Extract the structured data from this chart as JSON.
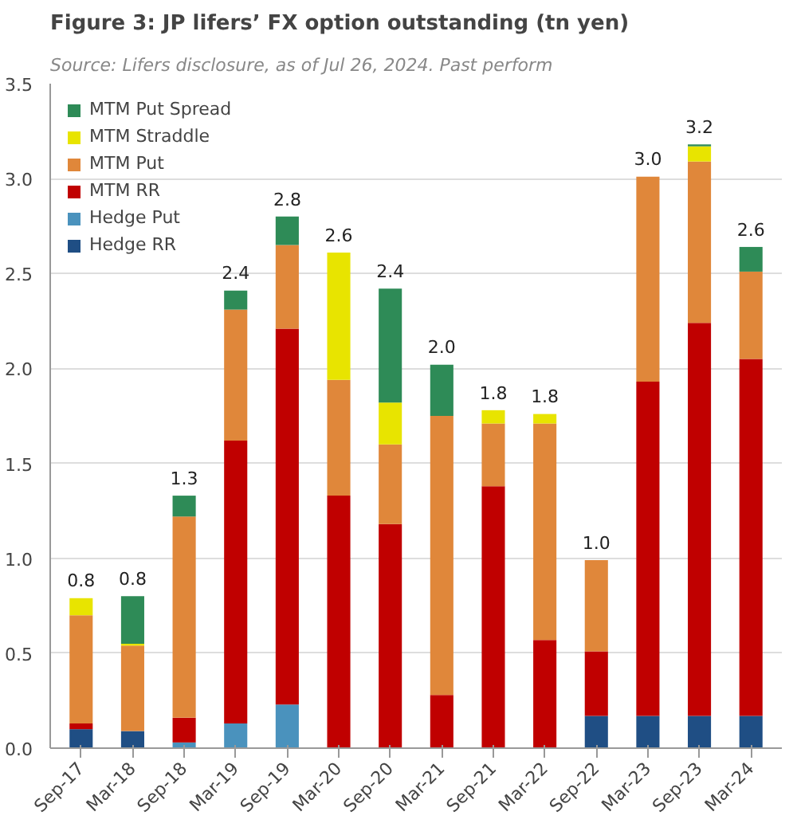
{
  "chart_data": {
    "type": "bar",
    "stacked": true,
    "title": "Figure 3: JP lifers’ FX option outstanding (tn yen)",
    "subtitle": "Source: Lifers disclosure, as of Jul 26, 2024. Past perform",
    "categories": [
      "Sep-17",
      "Mar-18",
      "Sep-18",
      "Mar-19",
      "Sep-19",
      "Mar-20",
      "Sep-20",
      "Mar-21",
      "Sep-21",
      "Mar-22",
      "Sep-22",
      "Mar-23",
      "Sep-23",
      "Mar-24"
    ],
    "series": [
      {
        "name": "Hedge RR",
        "color": "#1f4e84",
        "values": [
          0.1,
          0.09,
          null,
          0,
          0,
          0,
          0,
          0,
          0,
          0,
          0.17,
          0.17,
          0.17,
          0.17
        ]
      },
      {
        "name": "Hedge Put",
        "color": "#4a92bd",
        "values": [
          0,
          0,
          0.03,
          0.13,
          0.23,
          0,
          0,
          0,
          0,
          0,
          0,
          0,
          0,
          0
        ]
      },
      {
        "name": "MTM RR",
        "color": "#c00000",
        "values": [
          0.03,
          0,
          0.13,
          1.49,
          1.98,
          1.33,
          1.18,
          0.28,
          1.38,
          0.57,
          0.34,
          1.76,
          2.07,
          1.88
        ]
      },
      {
        "name": "MTM Put",
        "color": "#e0873a",
        "values": [
          0.57,
          0.45,
          1.06,
          0.69,
          0.44,
          0.61,
          0.42,
          1.47,
          0.33,
          1.14,
          0.48,
          1.08,
          0.85,
          0.46
        ]
      },
      {
        "name": "MTM Straddle",
        "color": "#e8e400",
        "values": [
          0.09,
          0.01,
          0,
          0,
          0,
          0.67,
          0.22,
          0,
          0.07,
          0.05,
          0,
          0,
          0.08,
          0
        ]
      },
      {
        "name": "MTM Put Spread",
        "color": "#2e8b57",
        "values": [
          0,
          0.25,
          0.11,
          0.1,
          0.15,
          0,
          0.6,
          0.27,
          0,
          0,
          0,
          0,
          0.01,
          0.13
        ]
      }
    ],
    "totals": [
      "0.8",
      "0.8",
      "1.3",
      "2.4",
      "2.8",
      "2.6",
      "2.4",
      "2.0",
      "1.8",
      "1.8",
      "1.0",
      "3.0",
      "3.2",
      "2.6"
    ],
    "ylim": [
      0,
      3.5
    ],
    "yticks": [
      {
        "value": 0,
        "label": "0.0"
      },
      {
        "value": 0.5,
        "label": "0.5"
      },
      {
        "value": 1,
        "label": "1.0"
      },
      {
        "value": 1.5,
        "label": "1.5"
      },
      {
        "value": 2,
        "label": "2.0"
      },
      {
        "value": 2.5,
        "label": "2.5"
      },
      {
        "value": 3,
        "label": "3.0"
      },
      {
        "value": 3.5,
        "label": "3.5"
      }
    ],
    "grid": "y",
    "legend": "top left"
  }
}
